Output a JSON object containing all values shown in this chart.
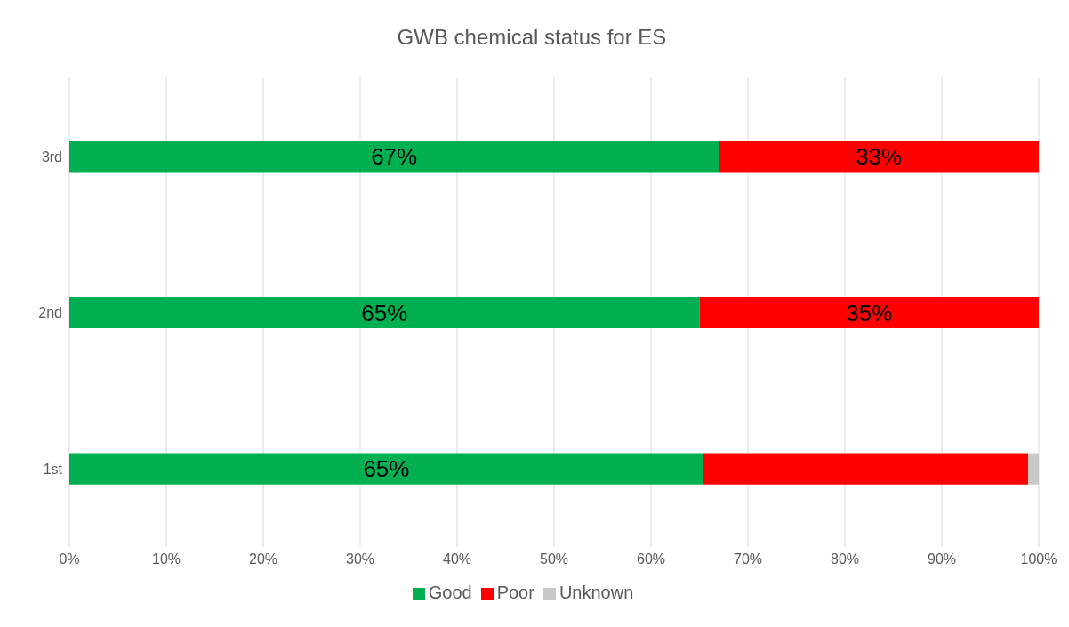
{
  "chart_data": {
    "type": "bar",
    "orientation": "horizontal",
    "stacked": true,
    "title": "GWB chemical status for ES",
    "categories": [
      "3rd",
      "2nd",
      "1st"
    ],
    "series": [
      {
        "name": "Good",
        "color": "#00b050",
        "values": [
          67,
          65,
          65.4
        ],
        "value_labels": [
          "67%",
          "65%",
          "65%"
        ]
      },
      {
        "name": "Poor",
        "color": "#ff0000",
        "values": [
          33,
          35,
          33.5
        ],
        "value_labels": [
          "33%",
          "35%",
          null
        ]
      },
      {
        "name": "Unknown",
        "color": "#c8c8c8",
        "values": [
          0,
          0,
          1.1
        ],
        "value_labels": [
          null,
          null,
          null
        ]
      }
    ],
    "xlim": [
      0,
      100
    ],
    "xticks": [
      {
        "value": 0,
        "label": "0%"
      },
      {
        "value": 10,
        "label": "10%"
      },
      {
        "value": 20,
        "label": "20%"
      },
      {
        "value": 30,
        "label": "30%"
      },
      {
        "value": 40,
        "label": "40%"
      },
      {
        "value": 50,
        "label": "50%"
      },
      {
        "value": 60,
        "label": "60%"
      },
      {
        "value": 70,
        "label": "70%"
      },
      {
        "value": 80,
        "label": "80%"
      },
      {
        "value": 90,
        "label": "90%"
      },
      {
        "value": 100,
        "label": "100%"
      }
    ],
    "grid": "x",
    "legend": "bottom"
  }
}
